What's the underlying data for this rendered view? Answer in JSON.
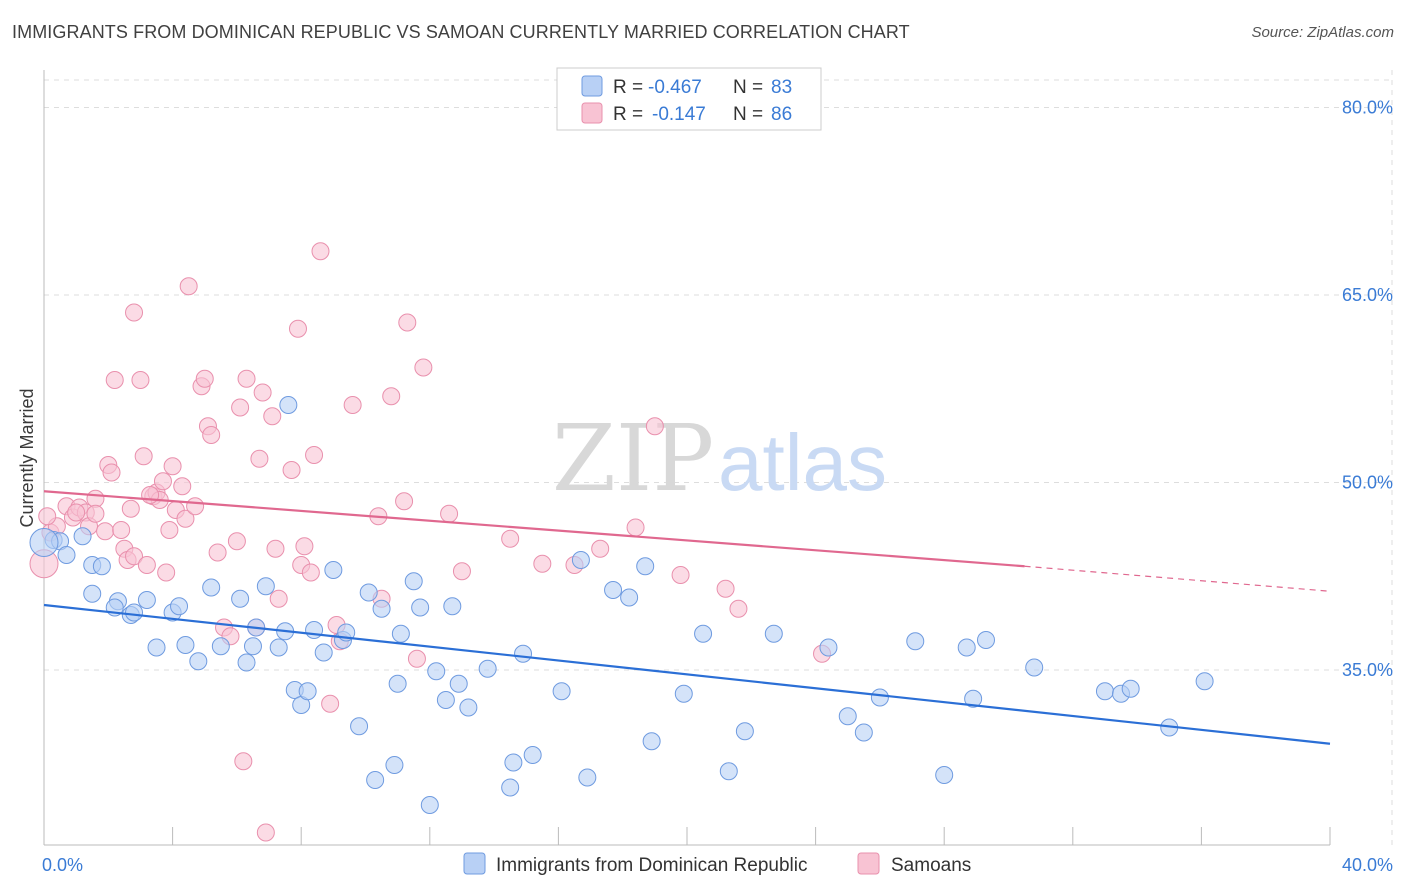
{
  "title": "IMMIGRANTS FROM DOMINICAN REPUBLIC VS SAMOAN CURRENTLY MARRIED CORRELATION CHART",
  "source": "Source: ZipAtlas.com",
  "watermark": {
    "zip": "ZIP",
    "atlas": "atlas"
  },
  "colors": {
    "blue_fill": "#b8d0f5",
    "blue_stroke": "#6f9be0",
    "blue_line": "#2b6fd6",
    "pink_fill": "#f8c3d3",
    "pink_stroke": "#e990ad",
    "pink_line": "#e0688f",
    "tick_text": "#3a7bd5",
    "grid": "#dddddd"
  },
  "legend": {
    "rows": [
      {
        "r_label": "R =",
        "r_value": "-0.467",
        "n_label": "N =",
        "n_value": "83"
      },
      {
        "r_label": "R =",
        "r_value": "-0.147",
        "n_label": "N =",
        "n_value": "86"
      }
    ]
  },
  "chart_data": {
    "type": "scatter",
    "xlabel": "",
    "ylabel": "Currently Married",
    "xlim": [
      0,
      40
    ],
    "ylim": [
      21,
      83
    ],
    "x_tick_labels": [
      "0.0%",
      "40.0%"
    ],
    "y_ticks": [
      35,
      50,
      65,
      80
    ],
    "y_tick_labels": [
      "35.0%",
      "50.0%",
      "65.0%",
      "80.0%"
    ],
    "grid": true,
    "legend_position": "top-center",
    "series": [
      {
        "name": "Immigrants from Dominican Republic",
        "color": "blue",
        "trend": {
          "x0": 0,
          "y0": 40.2,
          "x1": 40,
          "y1": 29.1
        },
        "points": [
          [
            0.3,
            45.4
          ],
          [
            0.5,
            45.3
          ],
          [
            0.7,
            44.2
          ],
          [
            1.2,
            45.7
          ],
          [
            1.5,
            43.4
          ],
          [
            1.8,
            43.3
          ],
          [
            1.5,
            41.1
          ],
          [
            2.3,
            40.5
          ],
          [
            2.2,
            40.0
          ],
          [
            2.7,
            39.4
          ],
          [
            3.2,
            40.6
          ],
          [
            2.8,
            39.6
          ],
          [
            3.5,
            36.8
          ],
          [
            4.0,
            39.6
          ],
          [
            4.2,
            40.1
          ],
          [
            4.4,
            37.0
          ],
          [
            4.8,
            35.7
          ],
          [
            5.2,
            41.6
          ],
          [
            5.5,
            36.9
          ],
          [
            6.1,
            40.7
          ],
          [
            6.5,
            36.9
          ],
          [
            6.3,
            35.6
          ],
          [
            6.6,
            38.4
          ],
          [
            6.9,
            41.7
          ],
          [
            7.3,
            36.8
          ],
          [
            7.5,
            38.1
          ],
          [
            7.6,
            56.2
          ],
          [
            7.8,
            33.4
          ],
          [
            8.0,
            32.2
          ],
          [
            8.2,
            33.3
          ],
          [
            8.4,
            38.2
          ],
          [
            8.7,
            36.4
          ],
          [
            9.0,
            43.0
          ],
          [
            9.3,
            37.4
          ],
          [
            9.8,
            30.5
          ],
          [
            10.1,
            41.2
          ],
          [
            10.5,
            39.9
          ],
          [
            10.3,
            26.2
          ],
          [
            10.9,
            27.4
          ],
          [
            11.0,
            33.9
          ],
          [
            11.1,
            37.9
          ],
          [
            11.5,
            42.1
          ],
          [
            11.7,
            40.0
          ],
          [
            12.0,
            24.2
          ],
          [
            12.2,
            34.9
          ],
          [
            12.5,
            32.6
          ],
          [
            12.7,
            40.1
          ],
          [
            12.9,
            33.9
          ],
          [
            13.2,
            32.0
          ],
          [
            13.8,
            35.1
          ],
          [
            14.5,
            25.6
          ],
          [
            14.6,
            27.6
          ],
          [
            14.9,
            36.3
          ],
          [
            15.2,
            28.2
          ],
          [
            16.1,
            33.3
          ],
          [
            16.7,
            43.8
          ],
          [
            16.9,
            26.4
          ],
          [
            17.7,
            41.4
          ],
          [
            18.2,
            40.8
          ],
          [
            18.7,
            43.3
          ],
          [
            18.9,
            29.3
          ],
          [
            19.9,
            33.1
          ],
          [
            20.5,
            37.9
          ],
          [
            21.3,
            26.9
          ],
          [
            21.8,
            30.1
          ],
          [
            22.7,
            37.9
          ],
          [
            24.4,
            36.8
          ],
          [
            25.0,
            31.3
          ],
          [
            25.5,
            30.0
          ],
          [
            26.0,
            32.8
          ],
          [
            27.1,
            37.3
          ],
          [
            28.0,
            26.6
          ],
          [
            28.7,
            36.8
          ],
          [
            28.9,
            32.7
          ],
          [
            29.3,
            37.4
          ],
          [
            30.8,
            35.2
          ],
          [
            33.0,
            33.3
          ],
          [
            33.5,
            33.1
          ],
          [
            33.8,
            33.5
          ],
          [
            35.0,
            30.4
          ],
          [
            36.1,
            34.1
          ],
          [
            0.0,
            45.2
          ],
          [
            9.4,
            38.0
          ]
        ]
      },
      {
        "name": "Samoans",
        "color": "pink",
        "trend": {
          "x0": 0,
          "y0": 49.3,
          "x1": 30.5,
          "y1": 43.3,
          "dash_to_x": 40,
          "dash_to_y": 41.3
        },
        "points": [
          [
            0.0,
            43.5
          ],
          [
            0.2,
            46.0
          ],
          [
            0.4,
            46.5
          ],
          [
            0.7,
            48.1
          ],
          [
            0.9,
            47.2
          ],
          [
            1.1,
            48.0
          ],
          [
            1.3,
            47.6
          ],
          [
            1.4,
            46.5
          ],
          [
            1.6,
            48.7
          ],
          [
            1.6,
            47.5
          ],
          [
            1.9,
            46.1
          ],
          [
            2.0,
            51.4
          ],
          [
            2.1,
            50.8
          ],
          [
            2.2,
            58.2
          ],
          [
            2.4,
            46.2
          ],
          [
            2.5,
            44.7
          ],
          [
            2.6,
            43.8
          ],
          [
            2.7,
            47.9
          ],
          [
            2.8,
            44.1
          ],
          [
            2.8,
            63.6
          ],
          [
            3.0,
            58.2
          ],
          [
            3.1,
            52.1
          ],
          [
            3.2,
            43.4
          ],
          [
            3.4,
            48.9
          ],
          [
            3.5,
            49.2
          ],
          [
            3.6,
            48.6
          ],
          [
            3.7,
            50.1
          ],
          [
            3.8,
            42.8
          ],
          [
            3.9,
            46.2
          ],
          [
            4.0,
            51.3
          ],
          [
            4.1,
            47.8
          ],
          [
            4.3,
            49.7
          ],
          [
            4.4,
            47.1
          ],
          [
            4.5,
            65.7
          ],
          [
            4.7,
            48.1
          ],
          [
            4.9,
            57.7
          ],
          [
            5.0,
            58.3
          ],
          [
            5.1,
            54.5
          ],
          [
            5.2,
            53.8
          ],
          [
            5.4,
            44.4
          ],
          [
            5.6,
            38.4
          ],
          [
            5.8,
            37.7
          ],
          [
            6.1,
            56.0
          ],
          [
            6.2,
            27.7
          ],
          [
            6.3,
            58.3
          ],
          [
            6.6,
            38.4
          ],
          [
            6.7,
            51.9
          ],
          [
            6.8,
            57.2
          ],
          [
            6.9,
            22.0
          ],
          [
            7.1,
            55.3
          ],
          [
            7.2,
            44.7
          ],
          [
            7.3,
            40.7
          ],
          [
            7.7,
            51.0
          ],
          [
            7.9,
            62.3
          ],
          [
            8.0,
            43.4
          ],
          [
            8.1,
            44.9
          ],
          [
            8.3,
            42.8
          ],
          [
            8.4,
            52.2
          ],
          [
            8.6,
            68.5
          ],
          [
            8.9,
            32.3
          ],
          [
            9.1,
            38.6
          ],
          [
            9.2,
            37.3
          ],
          [
            9.6,
            56.2
          ],
          [
            10.4,
            47.3
          ],
          [
            10.5,
            40.7
          ],
          [
            10.8,
            56.9
          ],
          [
            11.2,
            48.5
          ],
          [
            11.3,
            62.8
          ],
          [
            11.6,
            35.9
          ],
          [
            11.8,
            59.2
          ],
          [
            12.6,
            47.5
          ],
          [
            13.0,
            42.9
          ],
          [
            14.5,
            45.5
          ],
          [
            15.5,
            43.5
          ],
          [
            16.5,
            43.4
          ],
          [
            17.3,
            44.7
          ],
          [
            18.4,
            46.4
          ],
          [
            19.0,
            54.5
          ],
          [
            19.8,
            42.6
          ],
          [
            21.2,
            41.5
          ],
          [
            21.6,
            39.9
          ],
          [
            24.2,
            36.3
          ],
          [
            0.1,
            47.3
          ],
          [
            1.0,
            47.6
          ],
          [
            3.3,
            49.0
          ],
          [
            6.0,
            45.3
          ]
        ]
      }
    ]
  },
  "bottom_legend": {
    "items": [
      {
        "label": "Immigrants from Dominican Republic",
        "color": "blue"
      },
      {
        "label": "Samoans",
        "color": "pink"
      }
    ]
  }
}
